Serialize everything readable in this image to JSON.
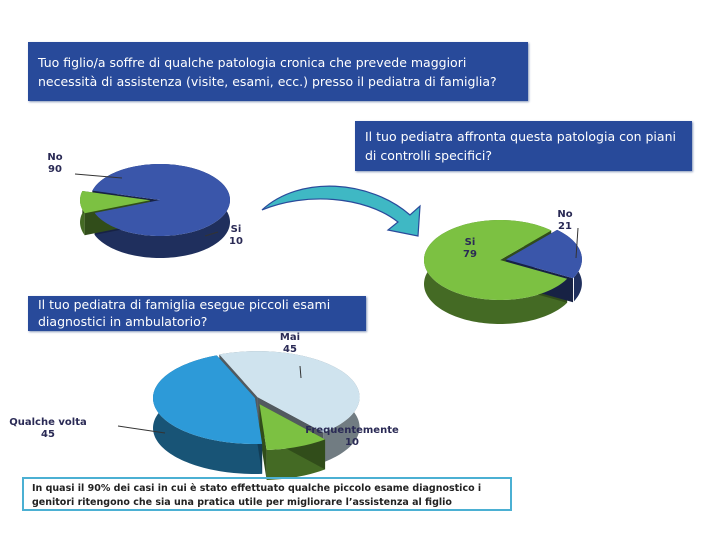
{
  "questions": {
    "q1": "Tuo figlio/a soffre di qualche patologia cronica che prevede maggiori necessità di assistenza (visite, esami, ecc.) presso il pediatra di famiglia?",
    "q2": "Il tuo pediatra affronta questa patologia con piani di controlli specifici?",
    "q3": "Il tuo pediatra di famiglia esegue piccoli esami diagnostici in ambulatorio?"
  },
  "note": "In quasi il 90% dei casi in cui è stato effettuato qualche piccolo esame diagnostico i genitori ritengono che sia una pratica utile per migliorare l’assistenza al figlio",
  "chart_data": [
    {
      "type": "pie",
      "title": "Tuo figlio/a soffre di qualche patologia cronica...",
      "categories": [
        "No",
        "Si"
      ],
      "values": [
        90,
        10
      ],
      "colors": [
        "#3a56aa",
        "#7cc142"
      ]
    },
    {
      "type": "pie",
      "title": "Il tuo pediatra affronta questa patologia con piani di controlli specifici?",
      "categories": [
        "Si",
        "No"
      ],
      "values": [
        79,
        21
      ],
      "colors": [
        "#7cc142",
        "#3a56aa"
      ]
    },
    {
      "type": "pie",
      "title": "Il tuo pediatra di famiglia esegue piccoli esami diagnostici in ambulatorio?",
      "categories": [
        "Mai",
        "Frequentemente",
        "Qualche volta"
      ],
      "values": [
        45,
        10,
        45
      ],
      "colors": [
        "#cfe3ee",
        "#7cc142",
        "#2d9ad8"
      ]
    }
  ]
}
